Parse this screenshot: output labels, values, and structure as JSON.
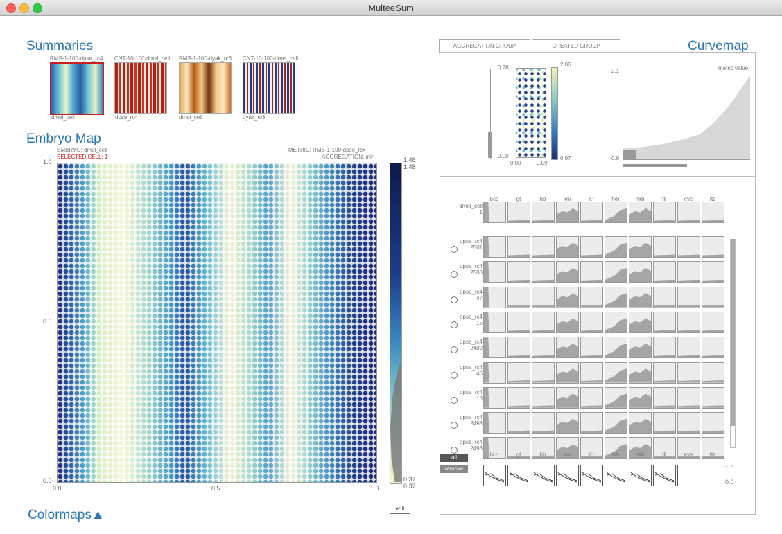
{
  "window": {
    "title": "MulteeSum"
  },
  "summaries": {
    "heading": "Summaries",
    "thumbs": [
      {
        "title": "RMS-1-100-dpse_rc4",
        "caption": "dmel_cell"
      },
      {
        "title": "CNT-10-100-dmel_cell",
        "caption": "dpse_rc4"
      },
      {
        "title": "RMS-1-100-dyak_rc3",
        "caption": "dmel_cell"
      },
      {
        "title": "CNT-10-100-dmel_cell",
        "caption": "dyak_rc3"
      }
    ]
  },
  "embryo": {
    "heading": "Embryo Map",
    "embryo_label": "EMBRYO: dmel_cell",
    "selected_cell": "SELECTED CELL: 1",
    "metric": "METRIC: RMS-1-100-dpse_rc4",
    "aggregation": "AGGREGATION: min",
    "axis": {
      "y_top": "1.0",
      "y_mid": "0.5",
      "y_bot": "0.0",
      "x_left": "0.0",
      "x_mid": "0.5",
      "x_right": "1.0"
    },
    "colorbar": {
      "max": "1.48",
      "max2": "1.48",
      "min": "0.37",
      "min2": "0.37"
    },
    "edit": "edit"
  },
  "colormaps": {
    "heading": "Colormaps▲"
  },
  "curvemap": {
    "heading": "Curvemap",
    "tabs": [
      "AGGREGATION GROUP",
      "CREATED GROUP"
    ],
    "scatter": {
      "y_top": "0.28",
      "y_bot": "0.00",
      "x_left": "0.00",
      "x_right": "0.09",
      "cbar_max": "2.06",
      "cbar_min": "0.97"
    },
    "metric": {
      "label": "metric value",
      "y_top": "2.1",
      "y_bot": "0.9"
    },
    "genes": [
      "bcd",
      "gt",
      "hb",
      "kni",
      "Kr",
      "fkh",
      "hkb",
      "tll",
      "eve",
      "ftz"
    ],
    "selected_row": {
      "name": "dmel_cell",
      "id": "1"
    },
    "rows": [
      {
        "name": "dpse_rc4",
        "id": "2501"
      },
      {
        "name": "dpse_rc4",
        "id": "2500"
      },
      {
        "name": "dpse_rc4",
        "id": "47"
      },
      {
        "name": "dpse_rc4",
        "id": "15"
      },
      {
        "name": "dpse_rc4",
        "id": "2489"
      },
      {
        "name": "dpse_rc4",
        "id": "46"
      },
      {
        "name": "dpse_rc4",
        "id": "13"
      },
      {
        "name": "dpse_rc4",
        "id": "2498"
      },
      {
        "name": "dpse_rc4",
        "id": "2493"
      }
    ],
    "all_btn": "all",
    "remove_btn": "remove",
    "sum_scale": {
      "top": "1.0",
      "bot": "0.0"
    }
  }
}
